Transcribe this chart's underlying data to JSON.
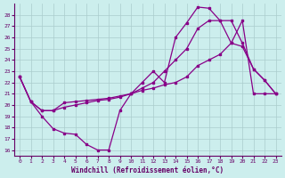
{
  "xlabel": "Windchill (Refroidissement éolien,°C)",
  "bg_color": "#cceeed",
  "line_color": "#880088",
  "grid_color": "#aacccc",
  "xlim": [
    -0.5,
    23.5
  ],
  "ylim": [
    15.5,
    29
  ],
  "yticks": [
    16,
    17,
    18,
    19,
    20,
    21,
    22,
    23,
    24,
    25,
    26,
    27,
    28
  ],
  "xticks": [
    0,
    1,
    2,
    3,
    4,
    5,
    6,
    7,
    8,
    9,
    10,
    11,
    12,
    13,
    14,
    15,
    16,
    17,
    18,
    19,
    20,
    21,
    22,
    23
  ],
  "series": [
    {
      "x": [
        0,
        1,
        2,
        3,
        4,
        5,
        6,
        7,
        8,
        9,
        10,
        11,
        12,
        13,
        14,
        15,
        16,
        17,
        18,
        19,
        20,
        21,
        22,
        23
      ],
      "y": [
        22.5,
        20.3,
        19.0,
        17.9,
        17.5,
        17.4,
        16.5,
        16.0,
        16.0,
        19.5,
        21.0,
        22.0,
        23.0,
        22.0,
        26.0,
        27.3,
        28.7,
        28.6,
        27.5,
        25.5,
        25.2,
        23.2,
        22.2,
        21.0
      ]
    },
    {
      "x": [
        0,
        1,
        2,
        3,
        4,
        5,
        6,
        7,
        8,
        9,
        10,
        11,
        12,
        13,
        14,
        15,
        16,
        17,
        18,
        19,
        20,
        21,
        22,
        23
      ],
      "y": [
        22.5,
        20.3,
        19.5,
        19.5,
        20.2,
        20.3,
        20.4,
        20.5,
        20.6,
        20.8,
        21.0,
        21.5,
        22.0,
        23.0,
        24.0,
        25.0,
        26.8,
        27.5,
        27.5,
        27.5,
        25.5,
        23.2,
        22.2,
        21.0
      ]
    },
    {
      "x": [
        0,
        1,
        2,
        3,
        4,
        5,
        6,
        7,
        8,
        9,
        10,
        11,
        12,
        13,
        14,
        15,
        16,
        17,
        18,
        19,
        20,
        21,
        22,
        23
      ],
      "y": [
        22.5,
        20.3,
        19.5,
        19.5,
        19.8,
        20.0,
        20.2,
        20.4,
        20.5,
        20.7,
        21.0,
        21.3,
        21.5,
        21.8,
        22.0,
        22.5,
        23.5,
        24.0,
        24.5,
        25.5,
        27.5,
        21.0,
        21.0,
        21.0
      ]
    }
  ]
}
